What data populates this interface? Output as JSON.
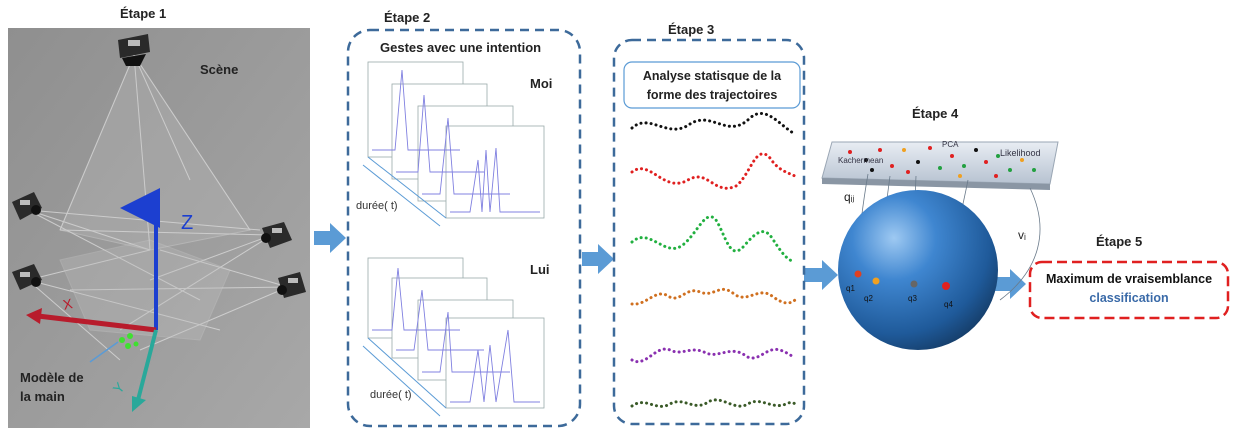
{
  "step1": {
    "label": "Étape 1",
    "scene_label": "Scène",
    "hand_label_line1": "Modèle de",
    "hand_label_line2": "la main",
    "axis_z": "Z",
    "axis_x": "X",
    "axis_y": "Y"
  },
  "step2": {
    "label": "Étape 2",
    "title": "Gestes avec une intention",
    "group_top": "Moi",
    "group_bottom": "Lui",
    "duration_label_top": "durée( t)",
    "duration_label_bottom": "durée( t)"
  },
  "step3": {
    "label": "Étape 3",
    "title_line1": "Analyse statisque de la",
    "title_line2": "forme des trajectoires",
    "curve_colors": [
      "#111111",
      "#e02020",
      "#22b040",
      "#d07020",
      "#8a30b0",
      "#3a5a28"
    ]
  },
  "step4": {
    "label": "Étape 4",
    "pca_label": "PCA",
    "karcher_label": "Kachermean",
    "likelihood_label": "Likelihood",
    "q_ij_label": "qᵢⱼ",
    "v_i_label": "vᵢ",
    "points": [
      "q1",
      "q2",
      "q3",
      "q4"
    ],
    "point_colors": [
      "#e04020",
      "#f0a020",
      "#666666",
      "#e02020"
    ]
  },
  "step5": {
    "label": "Étape 5",
    "result_line1": "Maximum de vraisemblance",
    "result_line2": "classification",
    "accent_color": "#e02020",
    "result_line2_color": "#3a6aa8"
  },
  "colors": {
    "panel_border": "#3d6a9a",
    "arrow": "#5b9bd5",
    "sphere": "#2e6db0"
  }
}
